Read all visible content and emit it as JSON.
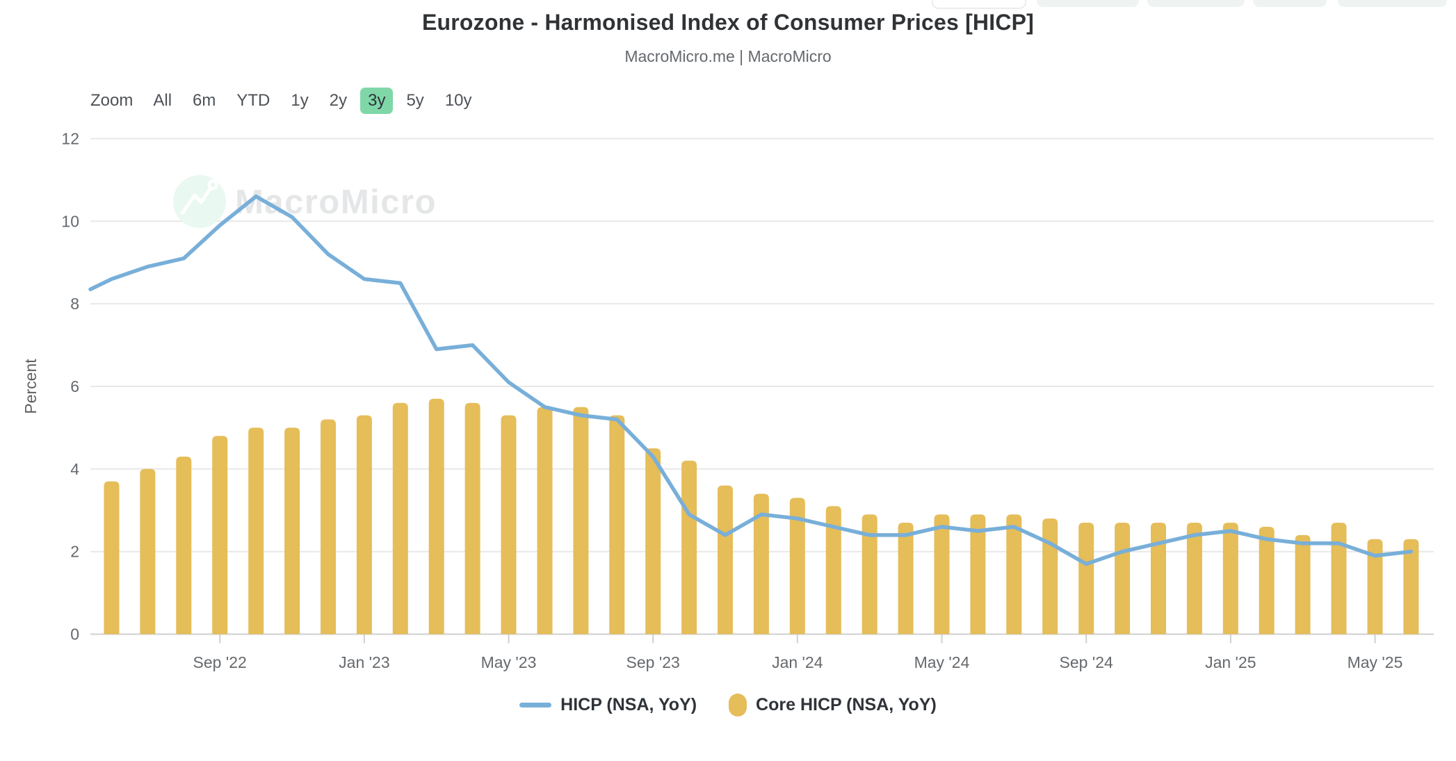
{
  "title": "Eurozone - Harmonised Index of Consumer Prices [HICP]",
  "subtitle": "MacroMicro.me | MacroMicro",
  "watermark": {
    "text": "MacroMicro"
  },
  "toolbar": {
    "zoom_label": "Zoom",
    "ranges": [
      "All",
      "6m",
      "YTD",
      "1y",
      "2y",
      "3y",
      "5y",
      "10y"
    ],
    "active": "3y"
  },
  "colors": {
    "line": "#78afd9",
    "bar": "#e5bd59",
    "active_range_bg": "#7fd7a8",
    "grid": "#e8e8e8",
    "axis_line": "#cfcfcf",
    "axis_text": "#65696d",
    "title_text": "#303336",
    "watermark_text": "#e4e6e7",
    "watermark_circle": "#e9f8f0"
  },
  "chart_data": {
    "type": "line+bar",
    "title": "Eurozone - Harmonised Index of Consumer Prices [HICP]",
    "subtitle": "MacroMicro.me | MacroMicro",
    "ylabel": "Percent",
    "ylim": [
      0,
      12
    ],
    "yticks": [
      0,
      2,
      4,
      6,
      8,
      10,
      12
    ],
    "grid": true,
    "legend_position": "bottom",
    "x_categories": [
      "Jun '22",
      "Jul '22",
      "Aug '22",
      "Sep '22",
      "Oct '22",
      "Nov '22",
      "Dec '22",
      "Jan '23",
      "Feb '23",
      "Mar '23",
      "Apr '23",
      "May '23",
      "Jun '23",
      "Jul '23",
      "Aug '23",
      "Sep '23",
      "Oct '23",
      "Nov '23",
      "Dec '23",
      "Jan '24",
      "Feb '24",
      "Mar '24",
      "Apr '24",
      "May '24",
      "Jun '24",
      "Jul '24",
      "Aug '24",
      "Sep '24",
      "Oct '24",
      "Nov '24",
      "Dec '24",
      "Jan '25",
      "Feb '25",
      "Mar '25",
      "Apr '25",
      "May '25",
      "Jun '25"
    ],
    "x_ticks": [
      {
        "index": 3,
        "label": "Sep '22"
      },
      {
        "index": 7,
        "label": "Jan '23"
      },
      {
        "index": 11,
        "label": "May '23"
      },
      {
        "index": 15,
        "label": "Sep '23"
      },
      {
        "index": 19,
        "label": "Jan '24"
      },
      {
        "index": 23,
        "label": "May '24"
      },
      {
        "index": 27,
        "label": "Sep '24"
      },
      {
        "index": 31,
        "label": "Jan '25"
      },
      {
        "index": 35,
        "label": "May '25"
      }
    ],
    "series": [
      {
        "name": "HICP (NSA, YoY)",
        "type": "line",
        "color": "#78afd9",
        "edge_start_value": 8.35,
        "values": [
          8.6,
          8.9,
          9.1,
          9.9,
          10.6,
          10.1,
          9.2,
          8.6,
          8.5,
          6.9,
          7.0,
          6.1,
          5.5,
          5.3,
          5.2,
          4.3,
          2.9,
          2.4,
          2.9,
          2.8,
          2.6,
          2.4,
          2.4,
          2.6,
          2.5,
          2.6,
          2.2,
          1.7,
          2.0,
          2.2,
          2.4,
          2.5,
          2.3,
          2.2,
          2.2,
          1.9,
          2.0
        ]
      },
      {
        "name": "Core HICP (NSA, YoY)",
        "type": "bar",
        "color": "#e5bd59",
        "values": [
          3.7,
          4.0,
          4.3,
          4.8,
          5.0,
          5.0,
          5.2,
          5.3,
          5.6,
          5.7,
          5.6,
          5.3,
          5.5,
          5.5,
          5.3,
          4.5,
          4.2,
          3.6,
          3.4,
          3.3,
          3.1,
          2.9,
          2.7,
          2.9,
          2.9,
          2.9,
          2.8,
          2.7,
          2.7,
          2.7,
          2.7,
          2.7,
          2.6,
          2.4,
          2.7,
          2.3,
          2.3
        ]
      }
    ]
  }
}
